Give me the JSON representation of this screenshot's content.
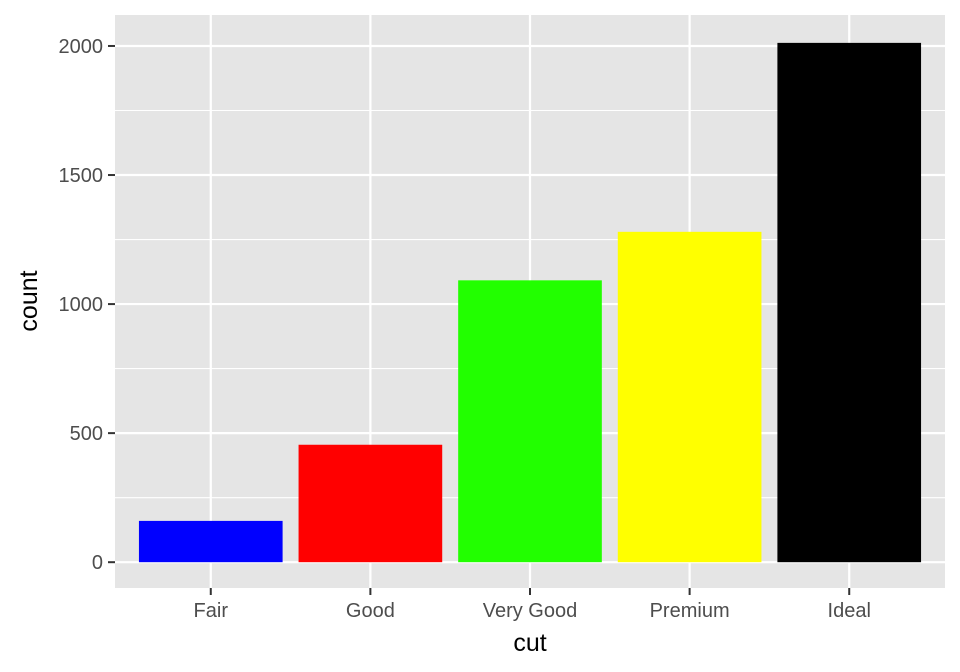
{
  "chart_data": {
    "type": "bar",
    "categories": [
      "Fair",
      "Good",
      "Very Good",
      "Premium",
      "Ideal"
    ],
    "values": [
      160,
      455,
      1092,
      1280,
      2012
    ],
    "bar_colors": [
      "#0000ff",
      "#ff0000",
      "#22ff00",
      "#ffff00",
      "#000000"
    ],
    "xlabel": "cut",
    "ylabel": "count",
    "ylim": [
      -100,
      2120
    ],
    "yticks": [
      0,
      500,
      1000,
      1500,
      2000
    ],
    "grid": true,
    "panel_background": "#e5e5e5",
    "grid_color": "#ffffff"
  }
}
